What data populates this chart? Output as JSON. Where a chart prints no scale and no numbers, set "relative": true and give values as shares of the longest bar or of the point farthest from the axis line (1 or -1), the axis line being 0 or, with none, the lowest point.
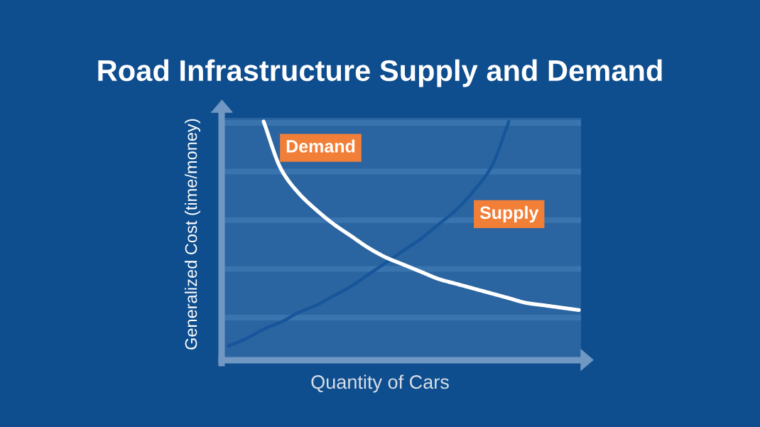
{
  "chart_data": {
    "type": "line",
    "title": "Road Infrastructure Supply and Demand",
    "xlabel": "Quantity of Cars",
    "ylabel": "Generalized Cost (time/money)",
    "relative": true,
    "categories": [
      null,
      null,
      null,
      null,
      null,
      null,
      null,
      null,
      null,
      null,
      null,
      null,
      null,
      null,
      null,
      null,
      null,
      null,
      null,
      null,
      null
    ],
    "series": [
      {
        "name": "Demand",
        "color": "#ffffff",
        "values": [
          null,
          null,
          1.0,
          0.8,
          0.7,
          0.63,
          0.57,
          0.52,
          0.47,
          0.43,
          0.4,
          0.37,
          0.34,
          0.32,
          0.3,
          0.28,
          0.26,
          0.24,
          0.23,
          0.22,
          0.21
        ]
      },
      {
        "name": "Supply",
        "color": "#17569a",
        "values": [
          0.06,
          0.09,
          0.13,
          0.16,
          0.2,
          0.23,
          0.27,
          0.31,
          0.36,
          0.41,
          0.46,
          0.51,
          0.57,
          0.63,
          0.71,
          0.81,
          1.0,
          null,
          null,
          null,
          null
        ]
      }
    ]
  }
}
